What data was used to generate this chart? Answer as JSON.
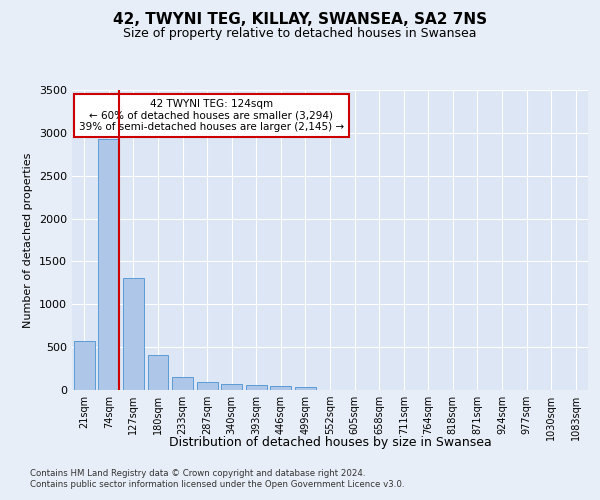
{
  "title1": "42, TWYNI TEG, KILLAY, SWANSEA, SA2 7NS",
  "title2": "Size of property relative to detached houses in Swansea",
  "xlabel": "Distribution of detached houses by size in Swansea",
  "ylabel": "Number of detached properties",
  "footer1": "Contains HM Land Registry data © Crown copyright and database right 2024.",
  "footer2": "Contains public sector information licensed under the Open Government Licence v3.0.",
  "annotation_line1": "42 TWYNI TEG: 124sqm",
  "annotation_line2": "← 60% of detached houses are smaller (3,294)",
  "annotation_line3": "39% of semi-detached houses are larger (2,145) →",
  "bar_color": "#aec6e8",
  "bar_edge_color": "#5b9bd5",
  "vline_color": "#cc0000",
  "background_color": "#e8eef7",
  "plot_bg_color": "#dce6f5",
  "grid_color": "#ffffff",
  "categories": [
    "21sqm",
    "74sqm",
    "127sqm",
    "180sqm",
    "233sqm",
    "287sqm",
    "340sqm",
    "393sqm",
    "446sqm",
    "499sqm",
    "552sqm",
    "605sqm",
    "658sqm",
    "711sqm",
    "764sqm",
    "818sqm",
    "871sqm",
    "924sqm",
    "977sqm",
    "1030sqm",
    "1083sqm"
  ],
  "values": [
    570,
    2930,
    1310,
    410,
    155,
    90,
    65,
    55,
    50,
    40,
    0,
    0,
    0,
    0,
    0,
    0,
    0,
    0,
    0,
    0,
    0
  ],
  "vline_x": 1.425,
  "ylim": [
    0,
    3500
  ],
  "yticks": [
    0,
    500,
    1000,
    1500,
    2000,
    2500,
    3000,
    3500
  ]
}
